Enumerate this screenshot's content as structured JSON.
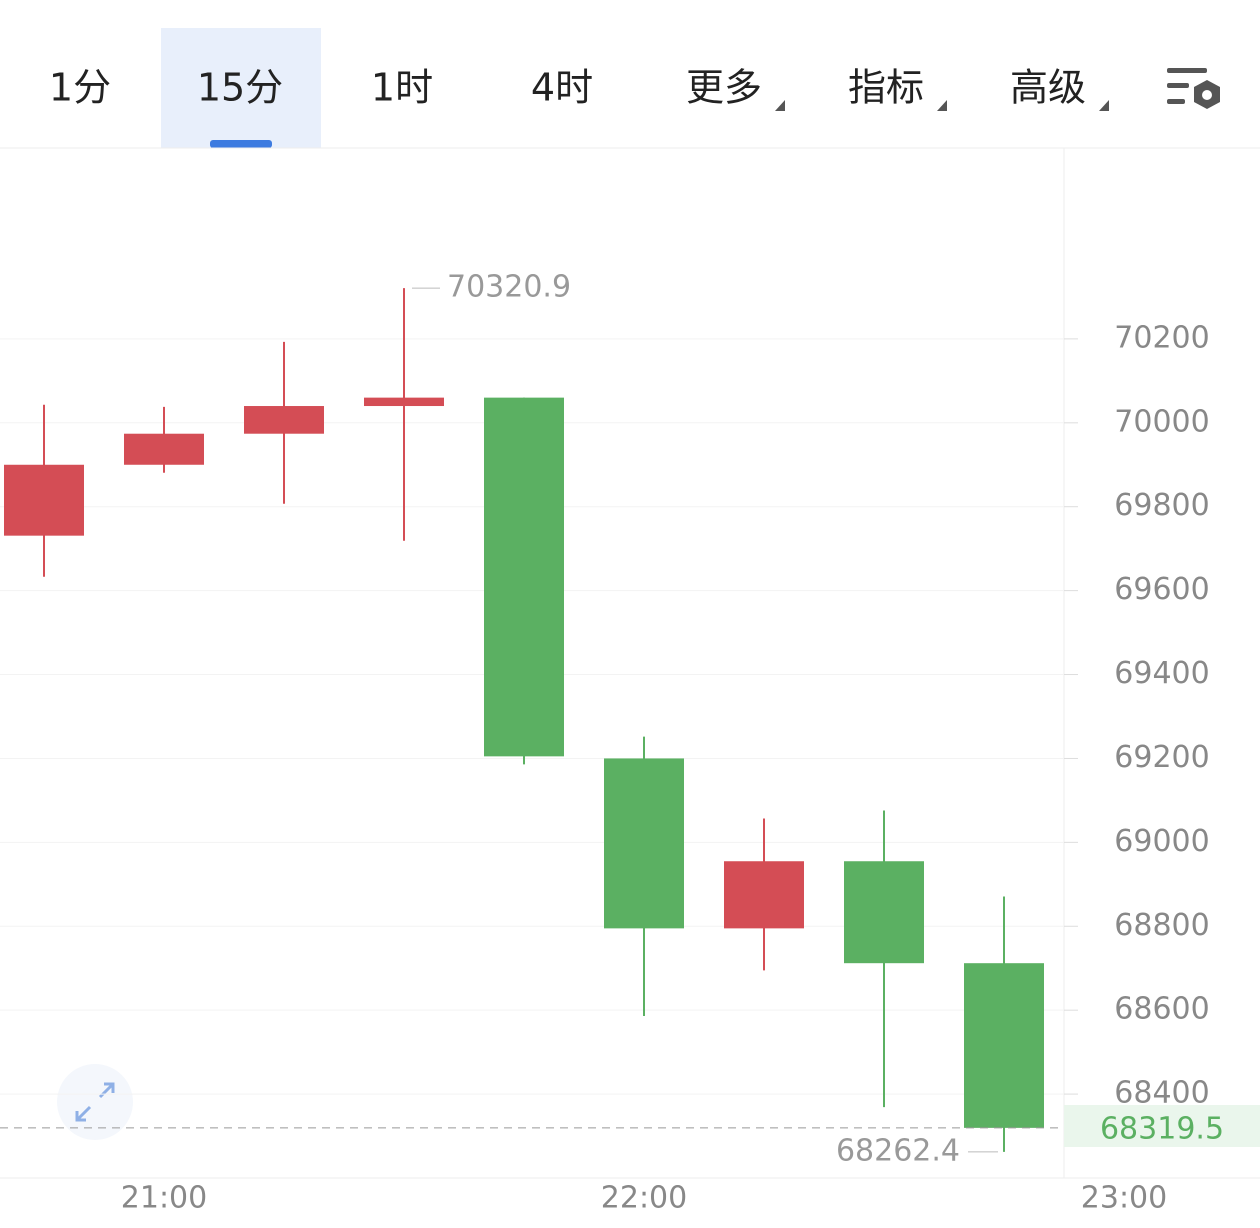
{
  "tabs": {
    "items": [
      "1分",
      "15分",
      "1时",
      "4时",
      "更多",
      "指标",
      "高级"
    ],
    "active": "15分"
  },
  "chart_data": {
    "type": "candlestick",
    "categories": [
      null,
      "21:00",
      null,
      null,
      null,
      "22:00",
      null,
      null,
      null,
      "23:00"
    ],
    "open": [
      69731,
      69900,
      69974,
      70040,
      70060,
      69200,
      68795,
      68955,
      68712,
      null
    ],
    "high": [
      70043,
      70038,
      70193,
      70320.9,
      70060,
      69252,
      69057,
      69076,
      68871,
      null
    ],
    "low": [
      69633,
      69881,
      69807,
      69719,
      69186,
      68586,
      68695,
      68369,
      68262.4,
      null
    ],
    "close": [
      69900,
      69974,
      70040,
      70060,
      69205,
      68795,
      68955,
      68712,
      68319.5,
      null
    ],
    "up_color": "#d44d55",
    "down_color": "#5bb062",
    "ylim": [
      68200,
      70655
    ],
    "yticks": [
      68400,
      68600,
      68800,
      69000,
      69200,
      69400,
      69600,
      69800,
      70000,
      70200
    ],
    "grid": true,
    "high_marker": 70320.9,
    "low_marker": 68262.4,
    "last_price": 68319.5
  }
}
